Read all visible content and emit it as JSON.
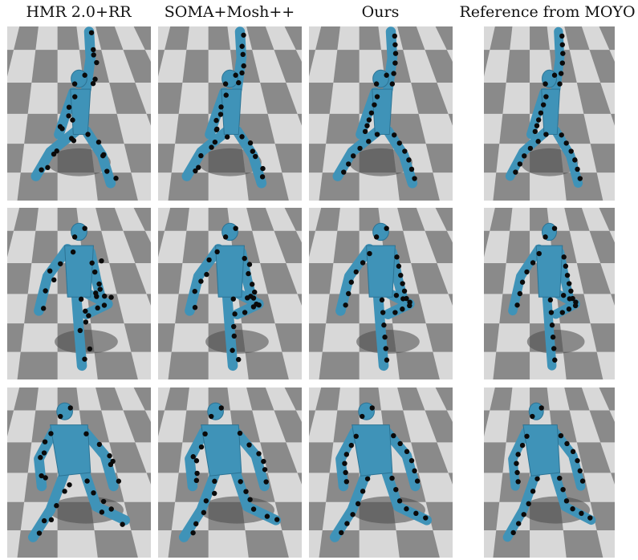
{
  "columns": [
    {
      "title": "HMR 2.0+RR"
    },
    {
      "title": "SOMA+Mosh++"
    },
    {
      "title": "Ours"
    },
    {
      "title": "Reference from MOYO"
    }
  ],
  "rows": [
    {
      "pose": "arm-raised-lunge"
    },
    {
      "pose": "one-leg-balance"
    },
    {
      "pose": "wide-crouch"
    }
  ],
  "colors": {
    "body": "#3f93b8",
    "body_dark": "#2c7394",
    "marker": "#0a0a0a",
    "floor_light": "#d8d8d8",
    "floor_dark": "#8a8a8a",
    "shadow": "#4a4a4a"
  }
}
